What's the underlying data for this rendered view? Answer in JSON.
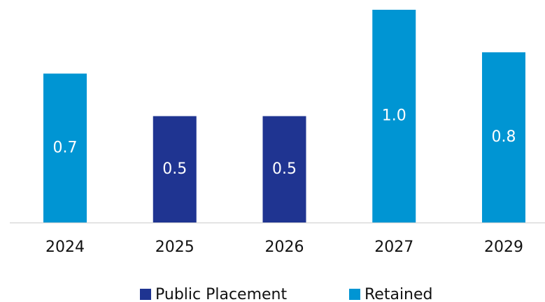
{
  "chart_data": {
    "type": "bar",
    "categories": [
      "2024",
      "2025",
      "2026",
      "2027",
      "2029"
    ],
    "series": [
      {
        "name": "Public Placement",
        "color": "#1f3491",
        "values": [
          null,
          0.5,
          0.5,
          null,
          null
        ]
      },
      {
        "name": "Retained",
        "color": "#0095d3",
        "values": [
          0.7,
          null,
          null,
          1.0,
          0.8
        ],
        "value_labels": [
          "0.7",
          null,
          null,
          "1.0",
          "0.8"
        ]
      }
    ],
    "ylim": [
      0,
      1
    ],
    "legend": "bottom"
  }
}
